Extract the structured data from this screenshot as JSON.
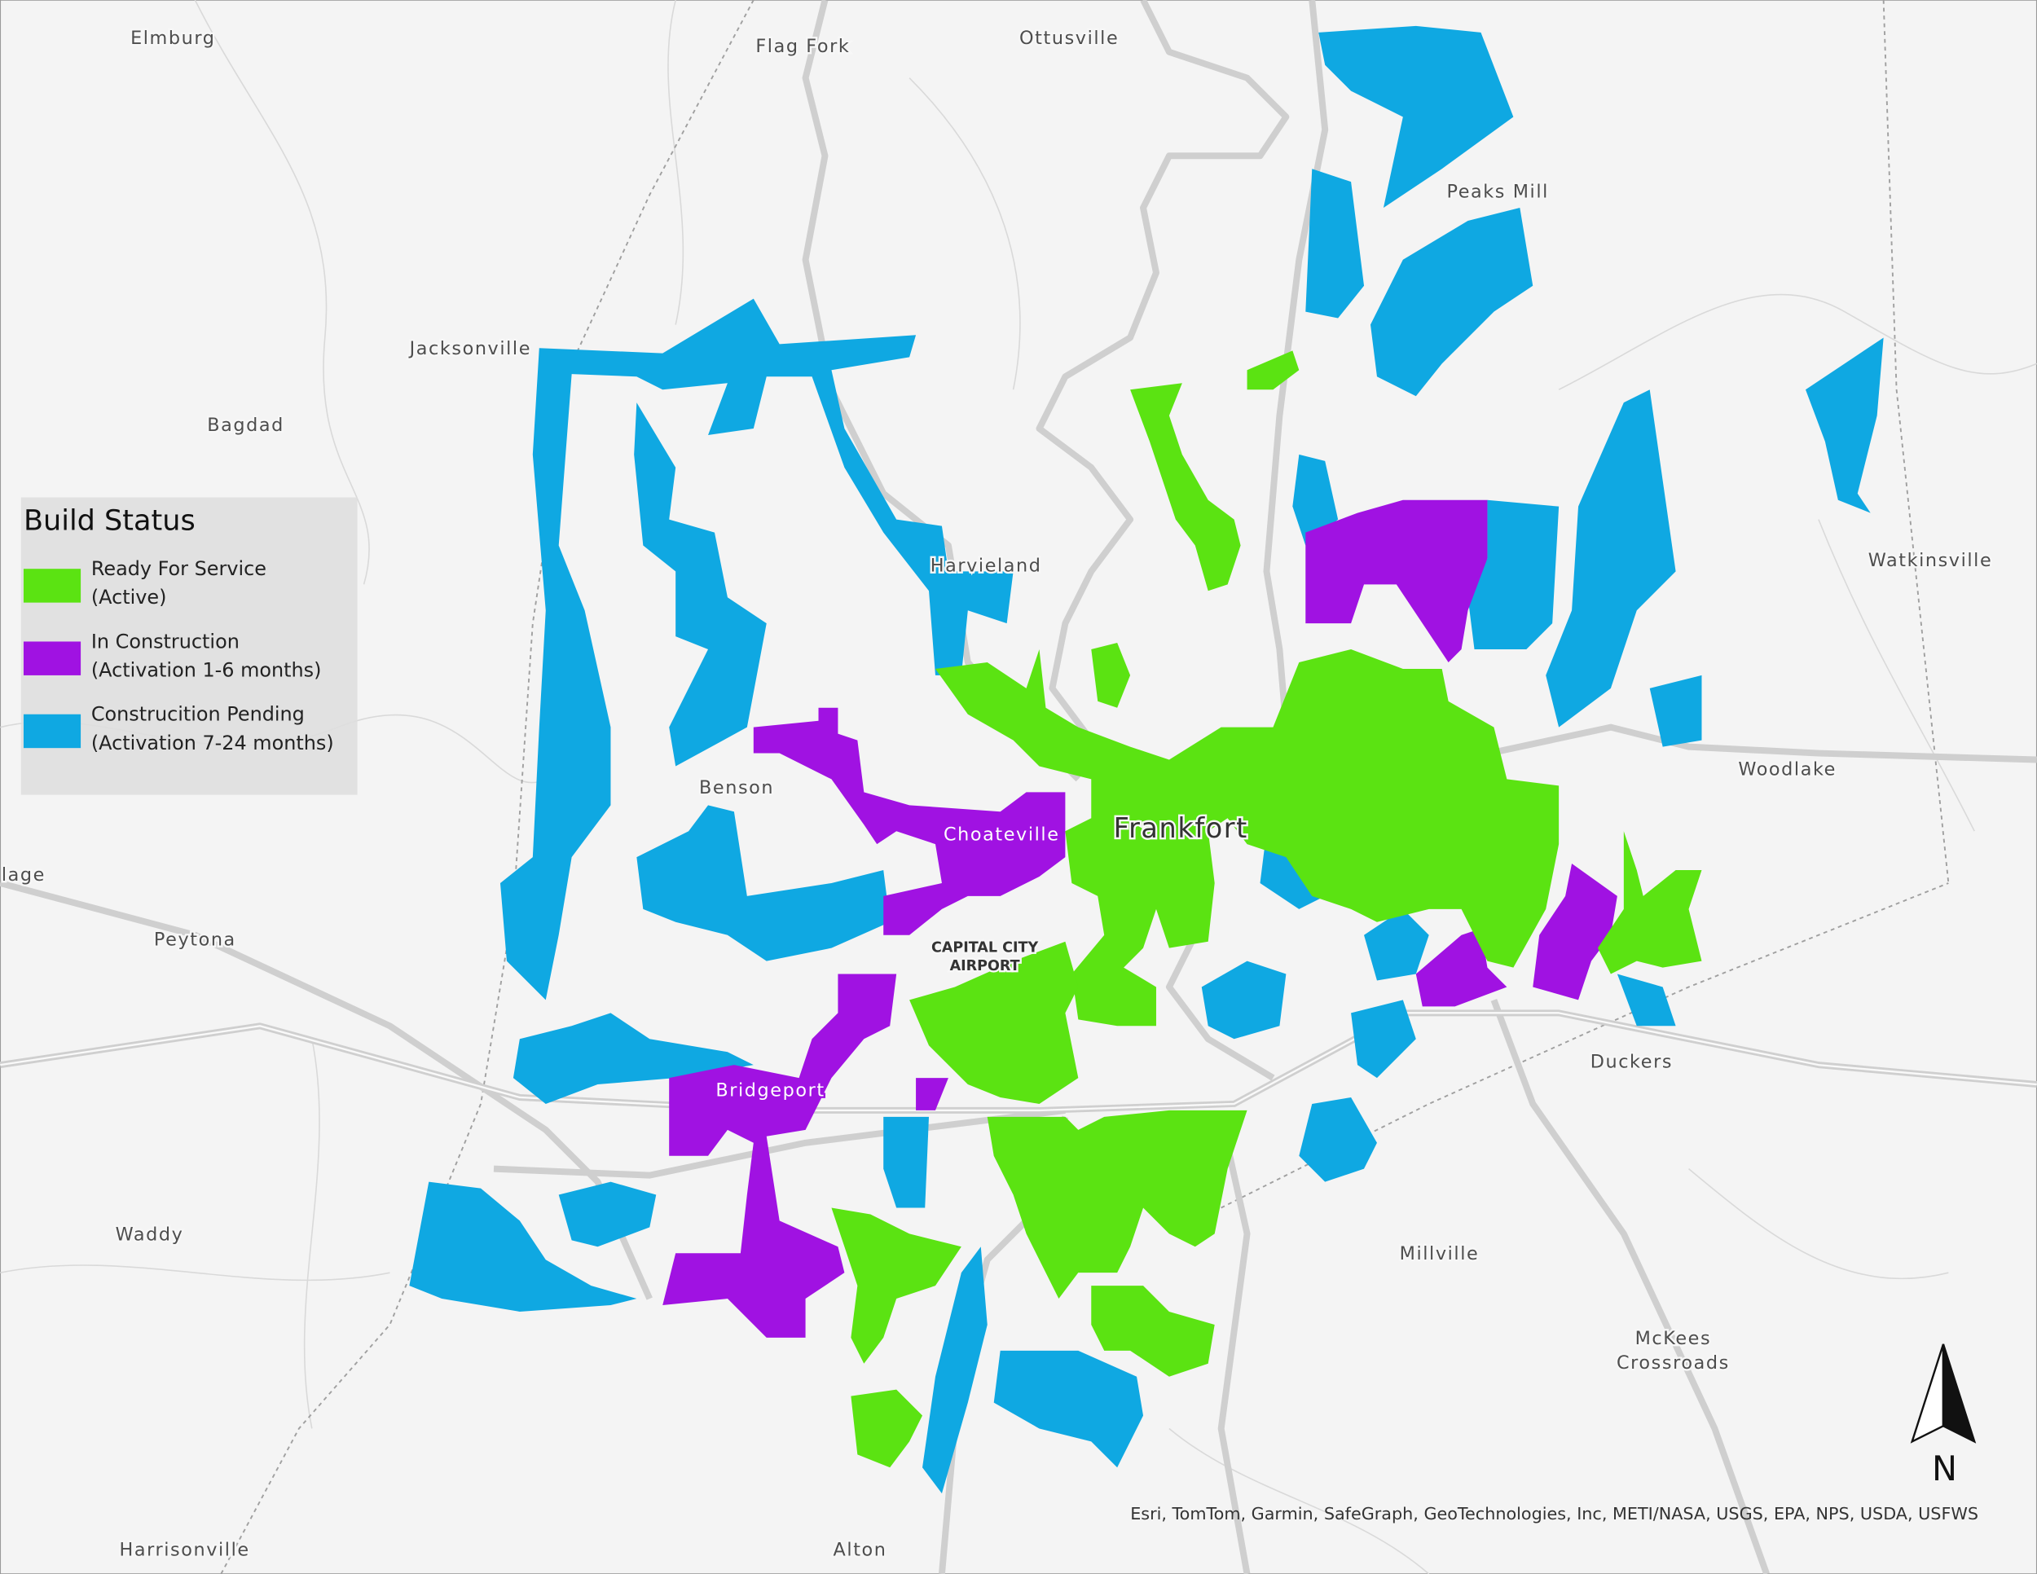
{
  "legend": {
    "title": "Build Status",
    "items": [
      {
        "label": "Ready For Service",
        "sublabel": "(Active)",
        "color": "#5be312"
      },
      {
        "label": "In Construction",
        "sublabel": "(Activation 1-6 months)",
        "color": "#a012e2"
      },
      {
        "label": "Construcition Pending",
        "sublabel": "(Activation 7-24 months)",
        "color": "#0fa8e2"
      }
    ]
  },
  "places": [
    "Elmburg",
    "Flag Fork",
    "Ottusville",
    "Peaks Mill",
    "Jacksonville",
    "Bagdad",
    "Harvieland",
    "Watkinsville",
    "Benson",
    "Choateville",
    "Woodlake",
    "lage",
    "Peytona",
    "CAPITAL CITY",
    "AIRPORT",
    "Bridgeport",
    "Duckers",
    "Waddy",
    "Millville",
    "McKees",
    "Crossroads",
    "Harrisonville",
    "Alton"
  ],
  "city": "Frankfort",
  "attribution": "Esri, TomTom, Garmin, SafeGraph, GeoTechnologies, Inc, METI/NASA, USGS, EPA, NPS, USDA, USFWS",
  "north": "N"
}
